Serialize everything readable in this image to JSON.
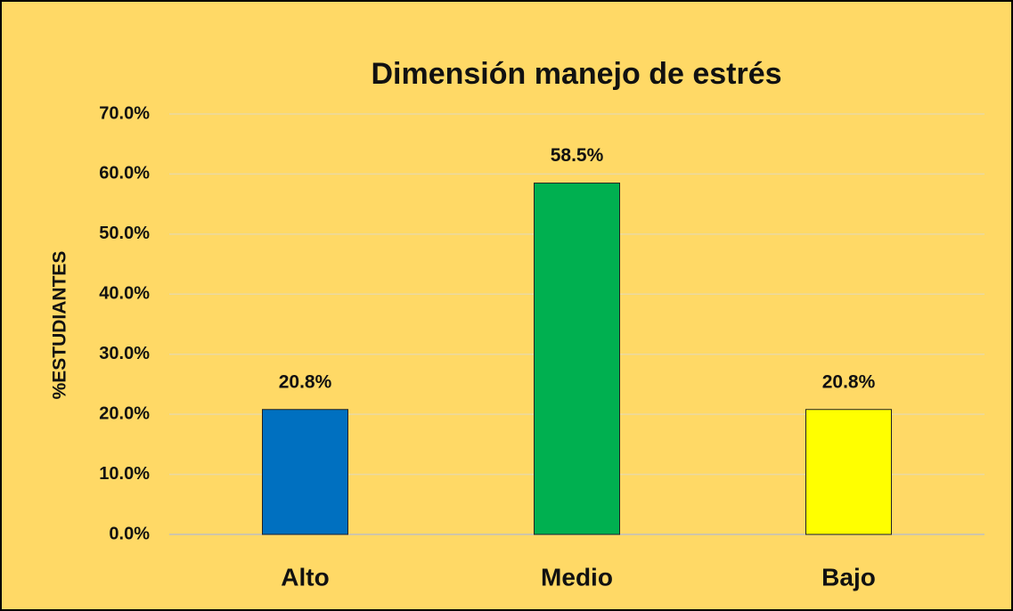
{
  "chart_data": {
    "type": "bar",
    "title": "Dimensión manejo de estrés",
    "y_label": "%ESTUDIANTES",
    "categories": [
      "Alto",
      "Medio",
      "Bajo"
    ],
    "values": [
      20.8,
      58.5,
      20.8
    ],
    "value_labels": [
      "20.8%",
      "58.5%",
      "20.8%"
    ],
    "colors": [
      "#0070C0",
      "#00B050",
      "#FFFF00"
    ],
    "ylim": [
      0,
      70
    ],
    "yticks": [
      {
        "value": 0,
        "label": "0.0%"
      },
      {
        "value": 10,
        "label": "10.0%"
      },
      {
        "value": 20,
        "label": "20.0%"
      },
      {
        "value": 30,
        "label": "30.0%"
      },
      {
        "value": 40,
        "label": "40.0%"
      },
      {
        "value": 50,
        "label": "50.0%"
      },
      {
        "value": 60,
        "label": "60.0%"
      },
      {
        "value": 70,
        "label": "70.0%"
      }
    ],
    "grid": true
  }
}
